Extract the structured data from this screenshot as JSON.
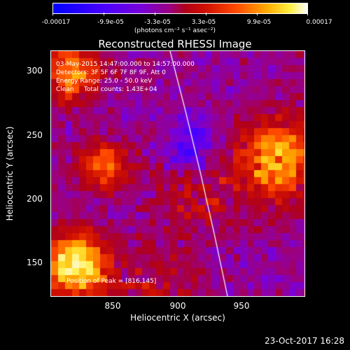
{
  "colorbar": {
    "labels": [
      "-0.00017",
      "-9.9e-05",
      "-3.3e-05",
      "3.3e-05",
      "9.9e-05",
      "0.00017"
    ],
    "units": "(photons cm⁻² s⁻¹ asec⁻²)"
  },
  "title": "Reconstructed RHESSI Image",
  "annotation": {
    "line1": "03-May-2015 14:47:00.000 to 14:57:00.000",
    "line2": "Detectors: 3F 5F 6F 7F 8F 9F, Att 0",
    "line3": "Energy Range: 25.0 - 50.0 keV",
    "line4": "Clean     Total counts: 1.43E+04",
    "peak": "Position of Peak = [816,145]"
  },
  "axes": {
    "xlabel": "Heliocentric X (arcsec)",
    "ylabel": "Heliocentric Y (arcsec)",
    "xticks": [
      "850",
      "900",
      "950"
    ],
    "yticks": [
      "300",
      "250",
      "200",
      "150"
    ]
  },
  "footer": {
    "date": "23-Oct-2017 16:28"
  },
  "colors": {
    "background": "#000000",
    "limb_line": "#ffffff"
  }
}
